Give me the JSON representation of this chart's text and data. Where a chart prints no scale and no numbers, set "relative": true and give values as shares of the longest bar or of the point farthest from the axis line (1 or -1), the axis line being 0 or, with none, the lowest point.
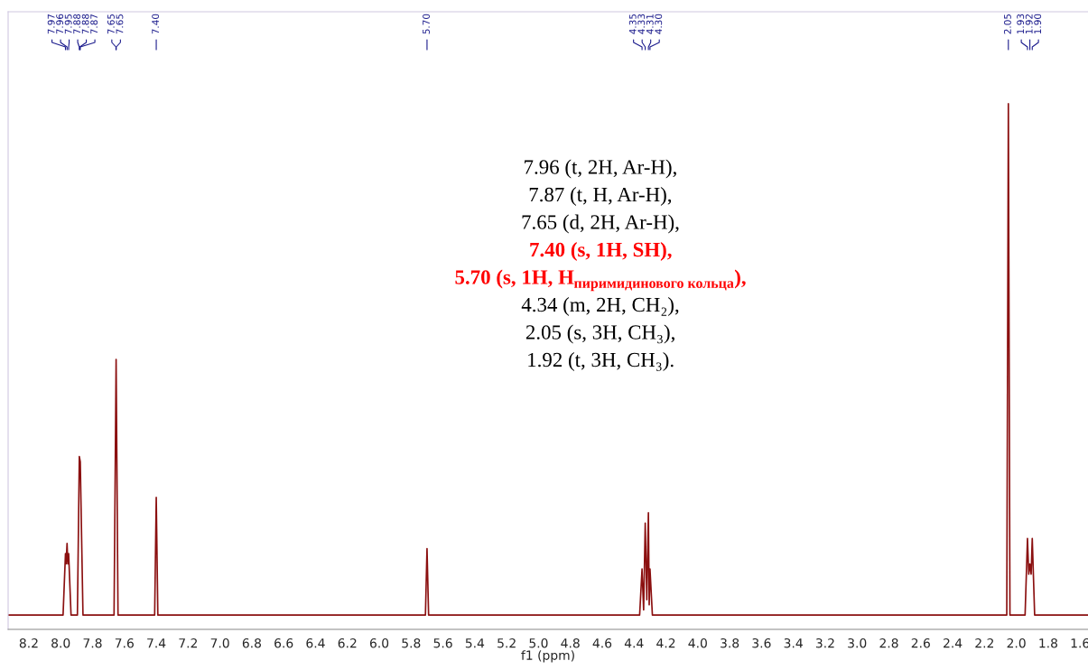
{
  "chart_data": {
    "type": "line",
    "relative": true,
    "xlabel": "f1 (ppm)",
    "xlim": [
      8.33,
      1.55
    ],
    "xticks": [
      8.2,
      {
        "value": 8,
        "label": "8.0"
      },
      7.8,
      7.6,
      7.4,
      7.2,
      {
        "value": 7,
        "label": "7.0"
      },
      6.8,
      6.6,
      6.4,
      6.2,
      {
        "value": 6,
        "label": "6.0"
      },
      5.8,
      5.6,
      5.4,
      5.2,
      {
        "value": 5,
        "label": "5.0"
      },
      4.8,
      4.6,
      4.4,
      4.2,
      {
        "value": 4,
        "label": "4.0"
      },
      3.8,
      3.6,
      3.4,
      3.2,
      {
        "value": 3,
        "label": "3.0"
      },
      2.8,
      2.6,
      2.4,
      2.2,
      {
        "value": 2,
        "label": "2.0"
      },
      1.8,
      1.6
    ],
    "grid": false,
    "marker": "none",
    "line_style": "solid",
    "x": [
      8.33,
      7.985,
      7.97,
      7.966,
      7.96,
      7.955,
      7.95,
      7.935,
      7.895,
      7.883,
      7.877,
      7.86,
      7.665,
      7.652,
      7.64,
      7.41,
      7.4,
      7.39,
      5.71,
      5.7,
      5.69,
      4.365,
      4.35,
      4.34,
      4.33,
      4.32,
      4.31,
      4.305,
      4.3,
      4.285,
      2.06,
      2.05,
      2.04,
      1.945,
      1.93,
      1.922,
      1.915,
      1.907,
      1.9,
      1.885,
      1.55
    ],
    "series": [
      {
        "color": "#8b1010",
        "values": [
          0,
          0,
          0.12,
          0.1,
          0.14,
          0.1,
          0.12,
          0,
          0,
          0.31,
          0.3,
          0,
          0,
          0.5,
          0,
          0,
          0.23,
          0,
          0,
          0.13,
          0,
          0,
          0.09,
          0.01,
          0.18,
          0.03,
          0.2,
          0.02,
          0.09,
          0,
          0,
          1,
          0,
          0,
          0.15,
          0.08,
          0.1,
          0.08,
          0.15,
          0,
          0
        ]
      }
    ],
    "annotations": [
      {
        "text": "7.97",
        "x": 7.97
      },
      {
        "text": "7.96",
        "x": 7.96
      },
      {
        "text": "7.95",
        "x": 7.95
      },
      {
        "text": "7.88",
        "x": 7.883
      },
      {
        "text": "7.88",
        "x": 7.88
      },
      {
        "text": "7.87",
        "x": 7.877
      },
      {
        "text": "7.65",
        "x": 7.653
      },
      {
        "text": "7.65",
        "x": 7.651
      },
      {
        "text": "7.40",
        "x": 7.4
      },
      {
        "text": "5.70",
        "x": 5.7
      },
      {
        "text": "4.35",
        "x": 4.35
      },
      {
        "text": "4.33",
        "x": 4.33
      },
      {
        "text": "4.31",
        "x": 4.31
      },
      {
        "text": "4.30",
        "x": 4.3
      },
      {
        "text": "2.05",
        "x": 2.05
      },
      {
        "text": "1.93",
        "x": 1.93
      },
      {
        "text": "1.92",
        "x": 1.915
      },
      {
        "text": "1.90",
        "x": 1.9
      },
      "7.96 (t, 2H, Ar-H),",
      "7.87 (t, H, Ar-H),",
      "7.65 (d, 2H, Ar-H),",
      "7.40 (s, 1H, SH),",
      "5.70 (s, 1H, H$_{пиримидинового кольца}$),",
      "4.34 (m, 2H, CH₂),",
      "2.05 (s, 3H, CH₃),",
      "1.92 (t, 3H, CH₃)."
    ]
  }
}
